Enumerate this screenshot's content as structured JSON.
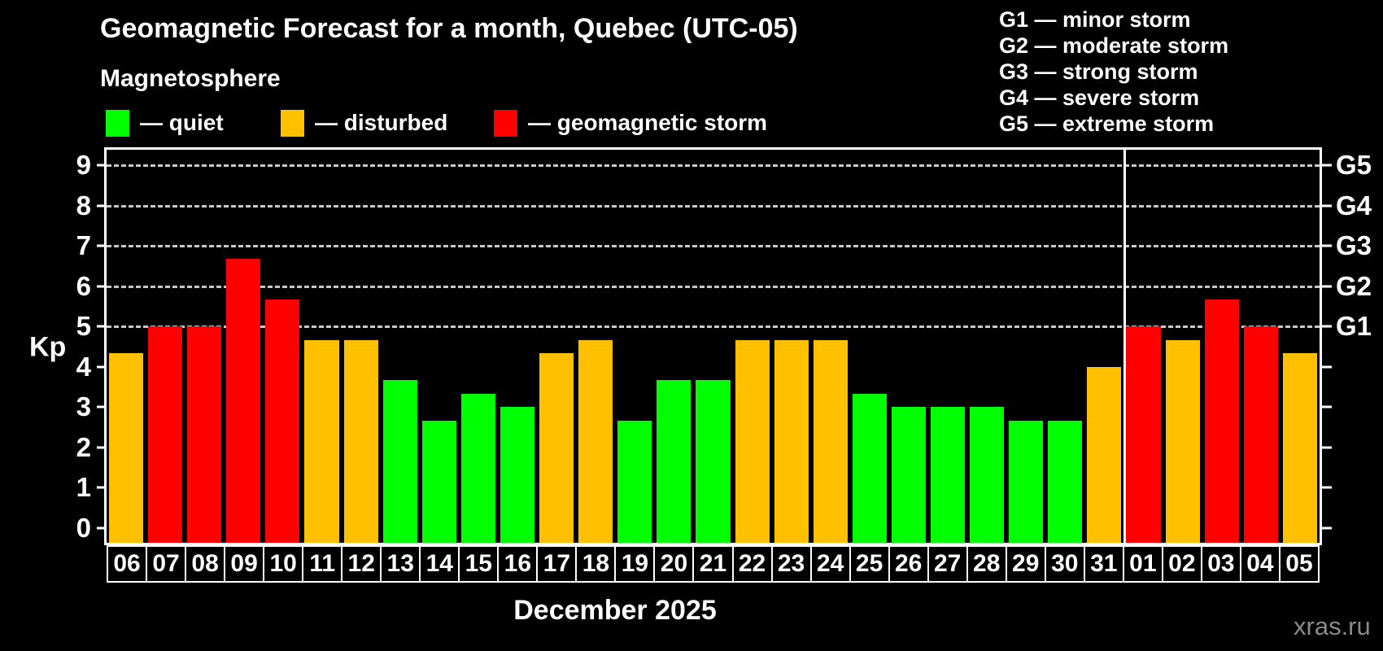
{
  "header": {
    "title": "Geomagnetic Forecast for a month, Quebec (UTC-05)",
    "subtitle": "Magnetosphere"
  },
  "legend": {
    "items": [
      {
        "status": "quiet",
        "label": "— quiet"
      },
      {
        "status": "disturbed",
        "label": "— disturbed"
      },
      {
        "status": "storm",
        "label": "— geomagnetic storm"
      }
    ]
  },
  "storm_scale_legend": {
    "items": [
      "G1 — minor storm",
      "G2 — moderate storm",
      "G3 — strong storm",
      "G4 — severe storm",
      "G5 — extreme storm"
    ]
  },
  "colors": {
    "quiet": "#00ff00",
    "disturbed": "#ffc000",
    "storm": "#ff0000",
    "axis": "#ffffff",
    "gridline": "#c8c8c8",
    "watermark": "#8a8a8a",
    "background": "#000000"
  },
  "axes": {
    "y_label": "Kp",
    "y_ticks": [
      0,
      1,
      2,
      3,
      4,
      5,
      6,
      7,
      8,
      9
    ],
    "gridline_levels": [
      5,
      6,
      7,
      8,
      9
    ],
    "right_labels": [
      {
        "label": "G5",
        "kp": 9
      },
      {
        "label": "G4",
        "kp": 8
      },
      {
        "label": "G3",
        "kp": 7
      },
      {
        "label": "G2",
        "kp": 6
      },
      {
        "label": "G1",
        "kp": 5
      }
    ]
  },
  "footer": {
    "month_label": "December 2025",
    "watermark": "xras.ru"
  },
  "chart_data": {
    "type": "bar",
    "title": "Geomagnetic Forecast for a month, Quebec (UTC-05)",
    "subtitle": "Magnetosphere",
    "ylabel": "Kp",
    "xlabel": "December 2025",
    "ylim": [
      -0.42,
      9.4
    ],
    "grid": "horizontal dashed lines at Kp 5,6,7,8,9 (G1–G5)",
    "legend_position": "top-left",
    "month_separator_after_category": "31",
    "categories": [
      "06",
      "07",
      "08",
      "09",
      "10",
      "11",
      "12",
      "13",
      "14",
      "15",
      "16",
      "17",
      "18",
      "19",
      "20",
      "21",
      "22",
      "23",
      "24",
      "25",
      "26",
      "27",
      "28",
      "29",
      "30",
      "31",
      "01",
      "02",
      "03",
      "04",
      "05"
    ],
    "values": [
      4.33,
      5,
      5,
      6.67,
      5.67,
      4.67,
      4.67,
      3.67,
      2.67,
      3.33,
      3,
      4.33,
      4.67,
      2.67,
      3.67,
      3.67,
      4.67,
      4.67,
      4.67,
      3.33,
      3,
      3,
      3,
      2.67,
      2.67,
      4,
      5,
      4.67,
      5.67,
      5,
      4.33
    ],
    "statuses": [
      "disturbed",
      "storm",
      "storm",
      "storm",
      "storm",
      "disturbed",
      "disturbed",
      "quiet",
      "quiet",
      "quiet",
      "quiet",
      "disturbed",
      "disturbed",
      "quiet",
      "quiet",
      "quiet",
      "disturbed",
      "disturbed",
      "disturbed",
      "quiet",
      "quiet",
      "quiet",
      "quiet",
      "quiet",
      "quiet",
      "disturbed",
      "storm",
      "disturbed",
      "storm",
      "storm",
      "disturbed"
    ]
  }
}
